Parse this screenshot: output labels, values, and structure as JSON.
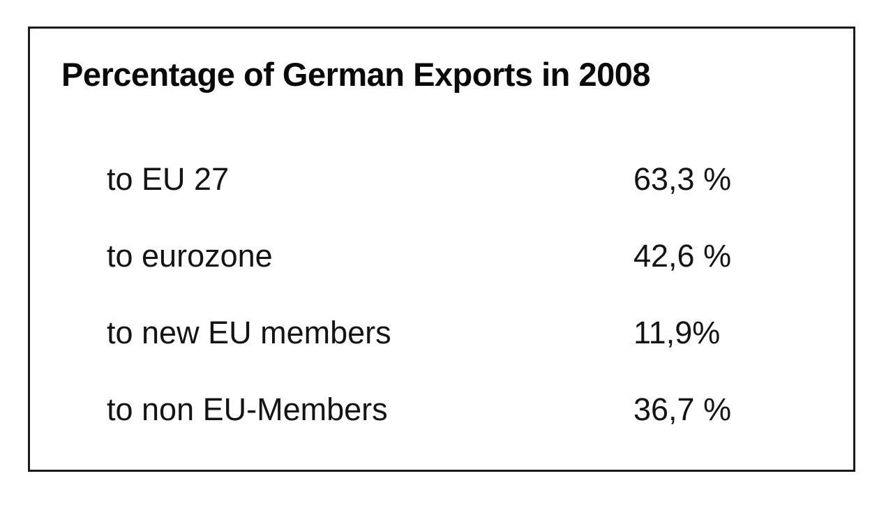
{
  "chart_data": {
    "type": "table",
    "title": "Percentage of German Exports in 2008",
    "categories": [
      "to EU 27",
      "to eurozone",
      "to new EU members",
      "to non EU-Members"
    ],
    "values": [
      63.3,
      42.6,
      11.9,
      36.7
    ],
    "value_labels": [
      "63,3 %",
      "42,6 %",
      "11,9%",
      "36,7 %"
    ],
    "unit": "%",
    "notes": "Decimal comma formatting; values listed beside category labels in a bordered box"
  },
  "table": {
    "title": "Percentage of German Exports in 2008",
    "rows": [
      {
        "label": "to EU 27",
        "value": "63,3 %"
      },
      {
        "label": "to eurozone",
        "value": "42,6 %"
      },
      {
        "label": "to new EU members",
        "value": "11,9%"
      },
      {
        "label": "to non EU-Members",
        "value": "36,7 %"
      }
    ]
  },
  "colors": {
    "border": "#1a1a1a",
    "text": "#0a0a0a",
    "background": "#ffffff"
  }
}
